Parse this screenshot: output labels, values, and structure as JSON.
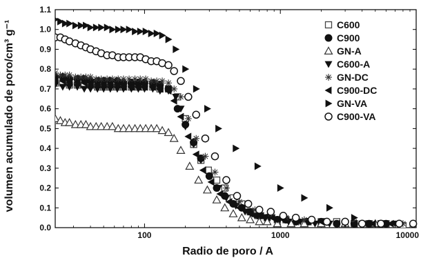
{
  "chart_data": {
    "type": "scatter",
    "title": "",
    "xlabel": "Radio de poro / A",
    "ylabel": "volumen acumulado de poro/cm³ g⁻¹",
    "xscale": "log",
    "xlim": [
      22,
      10000
    ],
    "ylim": [
      0.0,
      1.1
    ],
    "x_ticks": [
      100,
      1000,
      10000
    ],
    "x_tick_labels": [
      "100",
      "1000",
      "10000"
    ],
    "y_ticks": [
      0.0,
      0.1,
      0.2,
      0.3,
      0.4,
      0.5,
      0.6,
      0.7,
      0.8,
      0.9,
      1.0,
      1.1
    ],
    "y_tick_labels": [
      "0.0",
      "0.1",
      "0.2",
      "0.3",
      "0.4",
      "0.5",
      "0.6",
      "0.7",
      "0.8",
      "0.9",
      "1.0",
      "1.1"
    ],
    "grid": false,
    "legend_position": "top-right",
    "series": [
      {
        "name": "C600",
        "marker": "square-open",
        "x": [
          22,
          25,
          28,
          32,
          36,
          40,
          45,
          50,
          56,
          63,
          70,
          80,
          90,
          100,
          115,
          130,
          150,
          175,
          200,
          230,
          260,
          295,
          340,
          390,
          450,
          520,
          600,
          700,
          800,
          950,
          1100,
          1300,
          1600,
          2000,
          2600,
          3500,
          4500,
          6000,
          8000
        ],
        "y": [
          0.73,
          0.73,
          0.72,
          0.72,
          0.72,
          0.72,
          0.71,
          0.71,
          0.71,
          0.71,
          0.71,
          0.71,
          0.71,
          0.71,
          0.71,
          0.7,
          0.7,
          0.66,
          0.55,
          0.42,
          0.34,
          0.29,
          0.24,
          0.2,
          0.15,
          0.12,
          0.08,
          0.06,
          0.05,
          0.04,
          0.04,
          0.04,
          0.03,
          0.03,
          0.03,
          0.02,
          0.02,
          0.02,
          0.01
        ]
      },
      {
        "name": "C900",
        "marker": "circle-filled",
        "x": [
          22,
          25,
          28,
          32,
          36,
          40,
          45,
          50,
          56,
          63,
          70,
          80,
          90,
          100,
          115,
          130,
          150,
          175,
          200,
          230,
          260,
          300,
          340,
          390,
          450,
          520,
          600,
          700,
          800,
          950,
          1100,
          1300,
          1600,
          2000,
          2600,
          3500,
          4500,
          6000
        ],
        "y": [
          0.76,
          0.76,
          0.75,
          0.75,
          0.75,
          0.74,
          0.74,
          0.74,
          0.74,
          0.74,
          0.73,
          0.73,
          0.73,
          0.73,
          0.73,
          0.72,
          0.7,
          0.6,
          0.52,
          0.43,
          0.35,
          0.26,
          0.2,
          0.16,
          0.12,
          0.1,
          0.08,
          0.06,
          0.05,
          0.04,
          0.04,
          0.03,
          0.03,
          0.03,
          0.02,
          0.02,
          0.02,
          0.02
        ]
      },
      {
        "name": "GN-A",
        "marker": "triangle-up-open",
        "x": [
          22,
          24,
          26,
          28,
          31,
          34,
          37,
          40,
          44,
          48,
          53,
          58,
          64,
          70,
          77,
          85,
          93,
          102,
          112,
          123,
          135,
          150,
          165,
          185,
          215,
          250,
          290,
          340,
          390,
          450,
          520,
          600,
          700,
          800,
          950,
          1200,
          1500,
          2000,
          3000,
          5000
        ],
        "y": [
          0.55,
          0.54,
          0.53,
          0.53,
          0.52,
          0.52,
          0.52,
          0.51,
          0.51,
          0.51,
          0.51,
          0.51,
          0.5,
          0.5,
          0.5,
          0.5,
          0.5,
          0.5,
          0.5,
          0.5,
          0.49,
          0.48,
          0.45,
          0.39,
          0.31,
          0.24,
          0.19,
          0.14,
          0.1,
          0.07,
          0.05,
          0.04,
          0.03,
          0.03,
          0.02,
          0.02,
          0.02,
          0.02,
          0.02,
          0.02
        ]
      },
      {
        "name": "C600-A",
        "marker": "triangle-down-filled",
        "x": [
          22,
          25,
          28,
          32,
          36,
          40,
          45,
          50,
          56,
          63,
          70,
          80,
          90,
          100,
          115,
          130,
          150,
          170,
          185,
          200,
          230,
          260,
          300,
          350,
          400,
          470,
          550,
          650,
          780,
          950,
          1150,
          1400,
          1800,
          2300,
          3000,
          4000,
          5500,
          7000
        ],
        "y": [
          0.72,
          0.71,
          0.71,
          0.71,
          0.7,
          0.7,
          0.7,
          0.7,
          0.7,
          0.7,
          0.7,
          0.7,
          0.7,
          0.7,
          0.7,
          0.69,
          0.69,
          0.66,
          0.6,
          0.51,
          0.42,
          0.34,
          0.26,
          0.2,
          0.15,
          0.11,
          0.08,
          0.06,
          0.05,
          0.04,
          0.03,
          0.03,
          0.02,
          0.02,
          0.02,
          0.02,
          0.02,
          0.02
        ]
      },
      {
        "name": "GN-DC",
        "marker": "asterisk",
        "x": [
          22,
          24,
          26,
          28,
          31,
          34,
          37,
          40,
          44,
          48,
          53,
          58,
          64,
          70,
          77,
          85,
          93,
          102,
          112,
          123,
          135,
          150,
          165,
          185,
          210,
          240,
          280,
          330,
          400,
          500,
          650,
          850,
          1100,
          1500,
          2200,
          3500,
          5500,
          8000
        ],
        "y": [
          0.78,
          0.77,
          0.77,
          0.77,
          0.76,
          0.76,
          0.76,
          0.76,
          0.75,
          0.75,
          0.75,
          0.75,
          0.75,
          0.75,
          0.75,
          0.75,
          0.75,
          0.75,
          0.74,
          0.74,
          0.74,
          0.73,
          0.7,
          0.66,
          0.55,
          0.45,
          0.36,
          0.28,
          0.2,
          0.13,
          0.09,
          0.07,
          0.05,
          0.04,
          0.03,
          0.03,
          0.02,
          0.02
        ]
      },
      {
        "name": "C900-DC",
        "marker": "triangle-left-filled",
        "x": [
          22,
          25,
          28,
          32,
          36,
          40,
          45,
          50,
          56,
          63,
          70,
          80,
          90,
          100,
          115,
          130,
          150,
          165,
          185,
          210,
          240,
          270,
          310,
          360,
          420,
          500,
          600,
          720,
          870,
          1050,
          1300,
          1600,
          2000,
          2600,
          3500,
          4800,
          6500
        ],
        "y": [
          0.74,
          0.74,
          0.73,
          0.73,
          0.73,
          0.72,
          0.72,
          0.72,
          0.72,
          0.72,
          0.71,
          0.71,
          0.71,
          0.71,
          0.71,
          0.7,
          0.69,
          0.64,
          0.56,
          0.46,
          0.37,
          0.29,
          0.23,
          0.17,
          0.13,
          0.1,
          0.07,
          0.06,
          0.05,
          0.04,
          0.03,
          0.03,
          0.03,
          0.02,
          0.02,
          0.02,
          0.02
        ]
      },
      {
        "name": "GN-VA",
        "marker": "triangle-right-filled",
        "x": [
          22,
          24,
          26,
          28,
          31,
          34,
          37,
          40,
          44,
          48,
          53,
          58,
          64,
          70,
          77,
          85,
          93,
          102,
          112,
          123,
          135,
          150,
          170,
          200,
          240,
          290,
          350,
          470,
          680,
          1000,
          1500,
          2300,
          3500,
          5500
        ],
        "y": [
          1.05,
          1.04,
          1.03,
          1.03,
          1.02,
          1.02,
          1.02,
          1.01,
          1.01,
          1.01,
          1.01,
          1.0,
          1.0,
          1.0,
          1.0,
          0.99,
          0.99,
          0.99,
          0.98,
          0.98,
          0.97,
          0.95,
          0.9,
          0.8,
          0.7,
          0.6,
          0.5,
          0.4,
          0.31,
          0.2,
          0.15,
          0.1,
          0.05,
          0.02
        ]
      },
      {
        "name": "C900-VA",
        "marker": "circle-open",
        "x": [
          22,
          24,
          26,
          28,
          31,
          34,
          37,
          40,
          44,
          48,
          53,
          58,
          64,
          70,
          77,
          85,
          93,
          102,
          112,
          123,
          135,
          150,
          165,
          185,
          210,
          240,
          280,
          330,
          400,
          480,
          580,
          700,
          850,
          1050,
          1300,
          1700,
          2200,
          3000,
          4000,
          5500,
          7500,
          9500
        ],
        "y": [
          0.96,
          0.96,
          0.95,
          0.94,
          0.93,
          0.92,
          0.91,
          0.9,
          0.89,
          0.88,
          0.87,
          0.87,
          0.86,
          0.86,
          0.86,
          0.86,
          0.86,
          0.85,
          0.84,
          0.84,
          0.83,
          0.82,
          0.79,
          0.74,
          0.66,
          0.57,
          0.45,
          0.36,
          0.24,
          0.16,
          0.12,
          0.09,
          0.08,
          0.06,
          0.05,
          0.04,
          0.03,
          0.03,
          0.02,
          0.02,
          0.02,
          0.02
        ]
      }
    ]
  }
}
